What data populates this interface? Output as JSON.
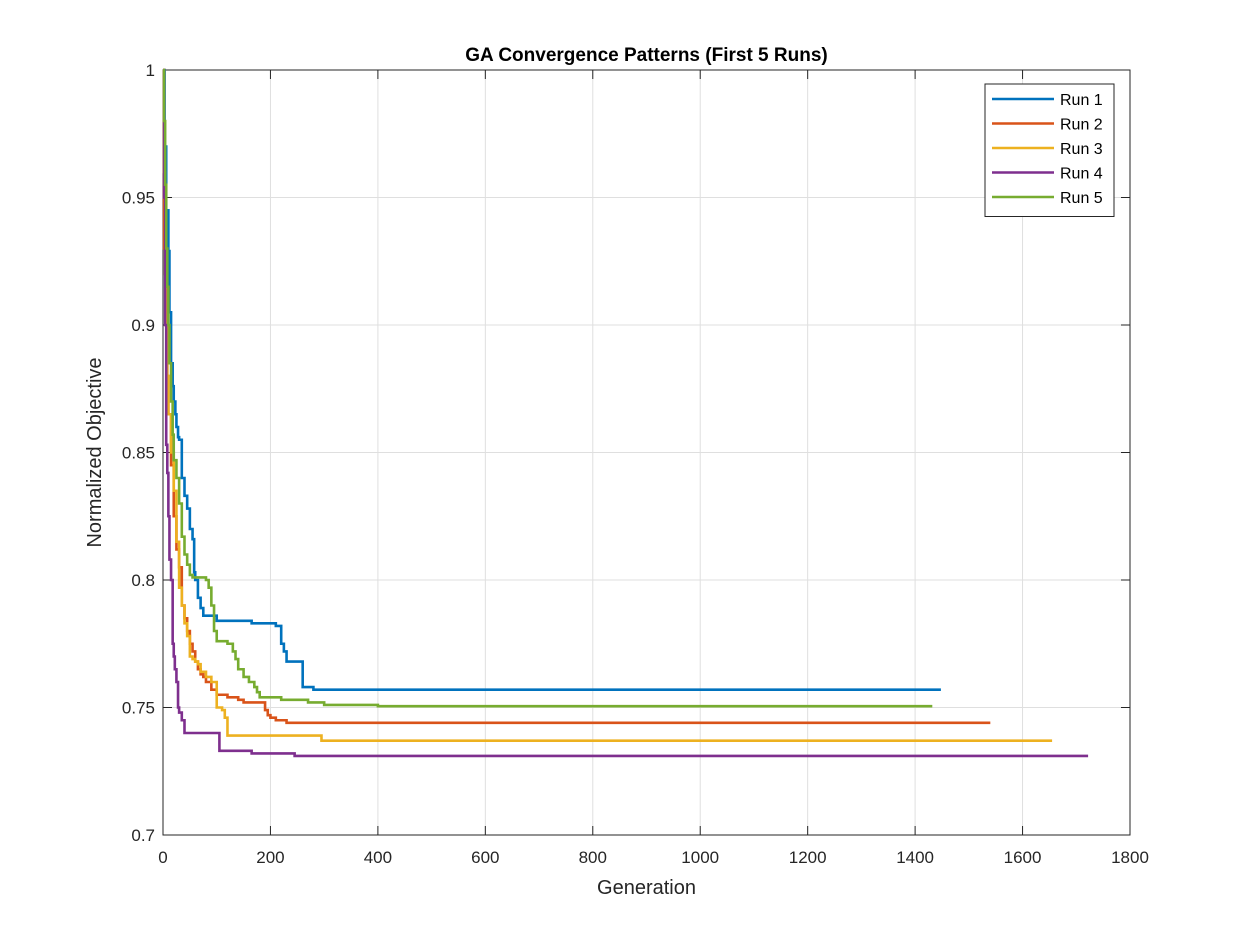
{
  "chart_data": {
    "type": "line",
    "title": "GA Convergence Patterns (First 5 Runs)",
    "xlabel": "Generation",
    "ylabel": "Normalized Objective",
    "xlim": [
      0,
      1800
    ],
    "ylim": [
      0.7,
      1.0
    ],
    "xticks": [
      0,
      200,
      400,
      600,
      800,
      1000,
      1200,
      1400,
      1600,
      1800
    ],
    "yticks": [
      0.7,
      0.75,
      0.8,
      0.85,
      0.9,
      0.95,
      1.0
    ],
    "xtick_labels": [
      "0",
      "200",
      "400",
      "600",
      "800",
      "1000",
      "1200",
      "1400",
      "1600",
      "1800"
    ],
    "ytick_labels": [
      "0.7",
      "0.75",
      "0.8",
      "0.85",
      "0.9",
      "0.95",
      "1"
    ],
    "grid": true,
    "legend_position": "top-right",
    "series": [
      {
        "name": "Run 1",
        "color": "#0072BD",
        "x": [
          0,
          3,
          6,
          10,
          12,
          15,
          18,
          20,
          23,
          25,
          28,
          30,
          35,
          40,
          45,
          50,
          55,
          58,
          60,
          65,
          70,
          75,
          80,
          100,
          120,
          140,
          160,
          165,
          180,
          200,
          210,
          215,
          218,
          220,
          225,
          230,
          250,
          255,
          260,
          270,
          280,
          285,
          300,
          350,
          1448
        ],
        "y": [
          1.0,
          0.97,
          0.945,
          0.929,
          0.905,
          0.885,
          0.876,
          0.87,
          0.865,
          0.86,
          0.856,
          0.855,
          0.84,
          0.833,
          0.828,
          0.82,
          0.816,
          0.803,
          0.8,
          0.793,
          0.789,
          0.786,
          0.786,
          0.784,
          0.784,
          0.784,
          0.784,
          0.783,
          0.783,
          0.783,
          0.782,
          0.782,
          0.782,
          0.775,
          0.772,
          0.768,
          0.768,
          0.768,
          0.758,
          0.758,
          0.757,
          0.757,
          0.757,
          0.757,
          0.757
        ]
      },
      {
        "name": "Run 2",
        "color": "#D95319",
        "x": [
          0,
          2,
          5,
          8,
          10,
          15,
          20,
          25,
          30,
          35,
          40,
          45,
          50,
          55,
          60,
          65,
          70,
          75,
          80,
          90,
          100,
          110,
          120,
          130,
          140,
          150,
          160,
          170,
          190,
          195,
          200,
          210,
          220,
          230,
          380,
          1540
        ],
        "y": [
          1.0,
          0.93,
          0.9,
          0.88,
          0.865,
          0.845,
          0.825,
          0.812,
          0.805,
          0.79,
          0.785,
          0.78,
          0.775,
          0.772,
          0.768,
          0.765,
          0.763,
          0.762,
          0.76,
          0.757,
          0.755,
          0.755,
          0.754,
          0.754,
          0.753,
          0.752,
          0.752,
          0.752,
          0.749,
          0.747,
          0.746,
          0.745,
          0.745,
          0.744,
          0.744,
          0.744
        ]
      },
      {
        "name": "Run 3",
        "color": "#EDB120",
        "x": [
          0,
          2,
          4,
          6,
          8,
          10,
          15,
          20,
          25,
          30,
          35,
          40,
          45,
          50,
          55,
          60,
          65,
          70,
          80,
          90,
          100,
          110,
          115,
          120,
          130,
          150,
          200,
          250,
          290,
          295,
          300,
          1655
        ],
        "y": [
          1.0,
          0.96,
          0.92,
          0.9,
          0.88,
          0.865,
          0.85,
          0.835,
          0.815,
          0.797,
          0.79,
          0.783,
          0.778,
          0.77,
          0.769,
          0.768,
          0.767,
          0.764,
          0.762,
          0.76,
          0.75,
          0.749,
          0.746,
          0.739,
          0.739,
          0.739,
          0.739,
          0.739,
          0.739,
          0.737,
          0.737,
          0.737
        ]
      },
      {
        "name": "Run 4",
        "color": "#7E2F8E",
        "x": [
          0,
          2,
          4,
          6,
          8,
          10,
          12,
          15,
          18,
          20,
          22,
          25,
          28,
          30,
          35,
          40,
          50,
          60,
          80,
          100,
          105,
          130,
          160,
          165,
          200,
          240,
          245,
          300,
          1722
        ],
        "y": [
          1.0,
          0.95,
          0.9,
          0.853,
          0.842,
          0.825,
          0.808,
          0.8,
          0.775,
          0.77,
          0.765,
          0.76,
          0.75,
          0.748,
          0.745,
          0.74,
          0.74,
          0.74,
          0.74,
          0.74,
          0.733,
          0.733,
          0.733,
          0.732,
          0.732,
          0.732,
          0.731,
          0.731,
          0.731
        ]
      },
      {
        "name": "Run 5",
        "color": "#77AC30",
        "x": [
          0,
          2,
          4,
          6,
          8,
          10,
          12,
          15,
          18,
          20,
          25,
          30,
          35,
          40,
          45,
          50,
          55,
          60,
          70,
          80,
          85,
          90,
          95,
          100,
          110,
          120,
          130,
          135,
          140,
          150,
          160,
          170,
          175,
          180,
          190,
          200,
          220,
          250,
          270,
          300,
          400,
          1432
        ],
        "y": [
          1.0,
          0.98,
          0.955,
          0.93,
          0.915,
          0.9,
          0.885,
          0.87,
          0.857,
          0.847,
          0.84,
          0.83,
          0.817,
          0.81,
          0.806,
          0.802,
          0.801,
          0.801,
          0.801,
          0.8,
          0.797,
          0.79,
          0.78,
          0.776,
          0.776,
          0.775,
          0.772,
          0.769,
          0.765,
          0.762,
          0.76,
          0.758,
          0.756,
          0.754,
          0.754,
          0.754,
          0.753,
          0.753,
          0.752,
          0.751,
          0.7505,
          0.7505
        ]
      }
    ]
  }
}
